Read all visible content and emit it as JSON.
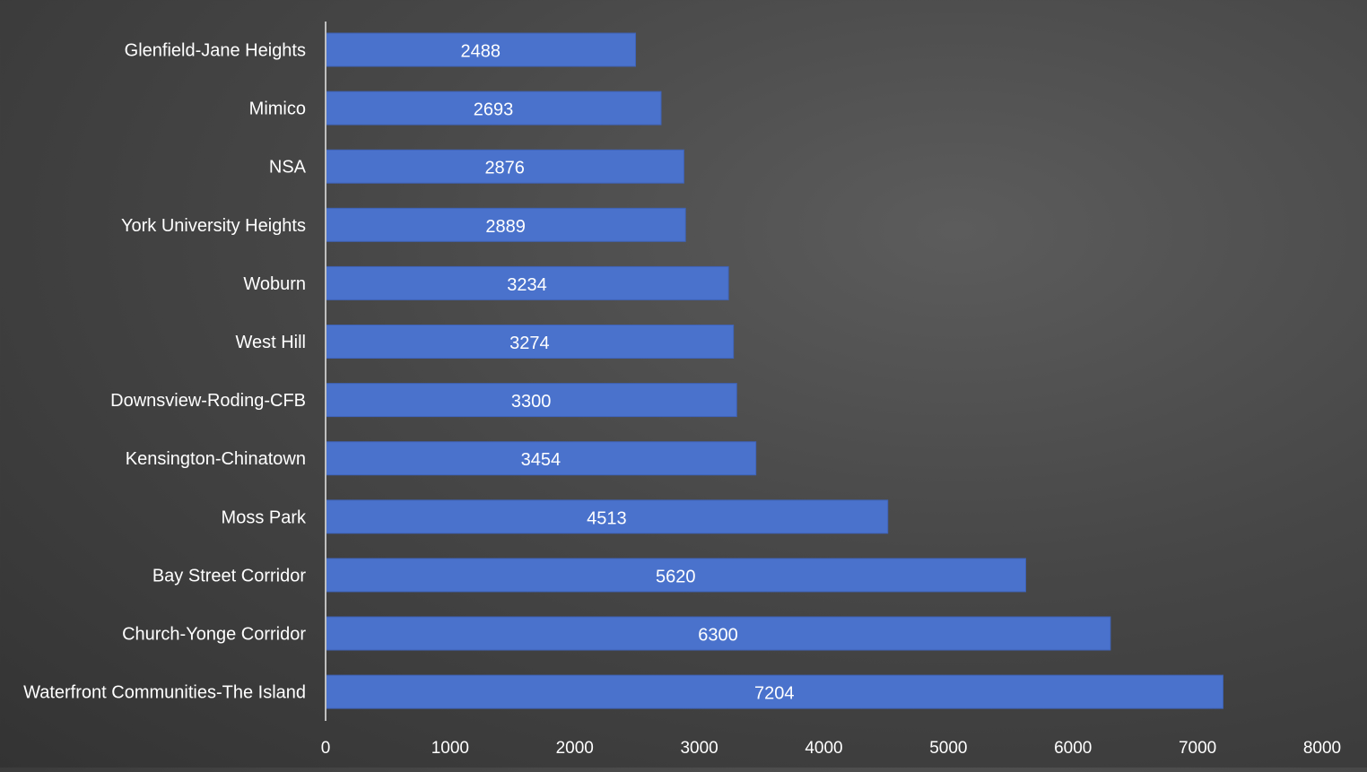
{
  "colors": {
    "bar": "#4a72cc",
    "bar_edge": "#3f63b8",
    "text": "#ffffff",
    "axis": "#bfbfbf"
  },
  "chart_data": {
    "type": "bar",
    "orientation": "horizontal",
    "title": "",
    "xlabel": "",
    "ylabel": "",
    "xlim": [
      0,
      8000
    ],
    "x_ticks": [
      0,
      1000,
      2000,
      3000,
      4000,
      5000,
      6000,
      7000,
      8000
    ],
    "grid": false,
    "legend": "none",
    "data_labels": "inside-center",
    "categories": [
      "Glenfield-Jane Heights",
      "Mimico",
      "NSA",
      "York University Heights",
      "Woburn",
      "West Hill",
      "Downsview-Roding-CFB",
      "Kensington-Chinatown",
      "Moss Park",
      "Bay Street Corridor",
      "Church-Yonge Corridor",
      "Waterfront Communities-The Island"
    ],
    "values": [
      2488,
      2693,
      2876,
      2889,
      3234,
      3274,
      3300,
      3454,
      4513,
      5620,
      6300,
      7204
    ]
  }
}
